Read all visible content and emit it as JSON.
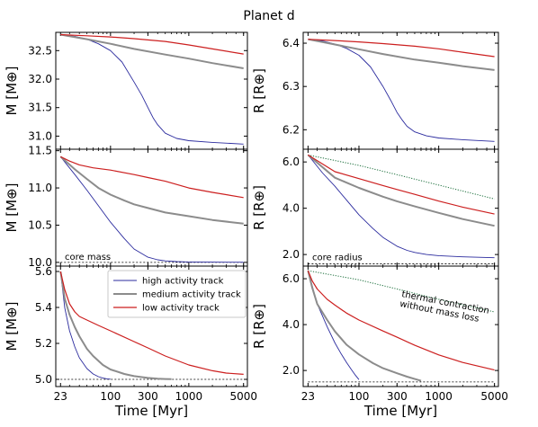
{
  "title": "Planet d",
  "chart_data": {
    "type": "line",
    "title": "Planet d",
    "xscale": "log",
    "xlabel": "Time [Myr]",
    "x_ticks": [
      23,
      100,
      300,
      1000,
      5000
    ],
    "xlim": [
      20,
      5600
    ],
    "legend": {
      "placement": "top-right of bottom-left panel",
      "entries": [
        {
          "name": "high activity track",
          "color": "#2b2b9e"
        },
        {
          "name": "medium activity track",
          "color": "#8c8c8c"
        },
        {
          "name": "low activity track",
          "color": "#cc1f1f"
        }
      ]
    },
    "panels": [
      {
        "id": "mass-top",
        "row": 0,
        "col": 0,
        "ylabel": "M [M⊕]",
        "ylim": [
          30.77,
          32.82
        ],
        "yticks": [
          31.0,
          31.5,
          32.0,
          32.5
        ],
        "ytick_labels": [
          "31.0",
          "31.5",
          "32.0",
          "32.5"
        ],
        "show_xticklabels": false,
        "series": [
          {
            "name": "high activity track",
            "x": [
              23,
              35,
              50,
              70,
              100,
              140,
              200,
              250,
              300,
              350,
              400,
              500,
              700,
              1000,
              2000,
              5000
            ],
            "y": [
              32.78,
              32.75,
              32.7,
              32.62,
              32.5,
              32.3,
              31.95,
              31.72,
              31.5,
              31.32,
              31.2,
              31.05,
              30.96,
              30.92,
              30.89,
              30.86
            ]
          },
          {
            "name": "medium activity track",
            "x": [
              23,
              50,
              100,
              200,
              500,
              1000,
              2000,
              5000
            ],
            "y": [
              32.78,
              32.7,
              32.62,
              32.53,
              32.43,
              32.36,
              32.28,
              32.19
            ]
          },
          {
            "name": "low activity track",
            "x": [
              23,
              50,
              100,
              200,
              500,
              1000,
              2000,
              5000
            ],
            "y": [
              32.78,
              32.76,
              32.74,
              32.71,
              32.66,
              32.6,
              32.53,
              32.44
            ]
          }
        ]
      },
      {
        "id": "radius-top",
        "row": 0,
        "col": 1,
        "ylabel": "R [R⊕]",
        "ylim": [
          6.155,
          6.425
        ],
        "yticks": [
          6.2,
          6.3,
          6.4
        ],
        "ytick_labels": [
          "6.2",
          "6.3",
          "6.4"
        ],
        "show_xticklabels": false,
        "series": [
          {
            "name": "high activity track",
            "x": [
              23,
              35,
              50,
              70,
              100,
              140,
              200,
              250,
              300,
              350,
              400,
              500,
              700,
              1000,
              2000,
              5000
            ],
            "y": [
              6.409,
              6.405,
              6.398,
              6.388,
              6.372,
              6.345,
              6.3,
              6.268,
              6.24,
              6.222,
              6.208,
              6.195,
              6.186,
              6.181,
              6.177,
              6.173
            ]
          },
          {
            "name": "medium activity track",
            "x": [
              23,
              50,
              100,
              200,
              500,
              1000,
              2000,
              5000
            ],
            "y": [
              6.409,
              6.397,
              6.386,
              6.375,
              6.362,
              6.355,
              6.347,
              6.338
            ]
          },
          {
            "name": "low activity track",
            "x": [
              23,
              50,
              100,
              200,
              500,
              1000,
              2000,
              5000
            ],
            "y": [
              6.409,
              6.406,
              6.403,
              6.399,
              6.393,
              6.387,
              6.379,
              6.369
            ]
          }
        ]
      },
      {
        "id": "mass-middle",
        "row": 1,
        "col": 0,
        "ylabel": "M [M⊕]",
        "ylim": [
          9.95,
          11.52
        ],
        "yticks": [
          10.0,
          10.5,
          11.0,
          11.5
        ],
        "ytick_labels": [
          "10.0",
          "10.5",
          "11.0",
          "11.5"
        ],
        "show_xticklabels": false,
        "series": [
          {
            "name": "high activity track",
            "x": [
              23,
              35,
              50,
              70,
              100,
              150,
              200,
              300,
              400,
              500,
              700,
              1000,
              2000,
              5000
            ],
            "y": [
              11.42,
              11.18,
              10.97,
              10.76,
              10.54,
              10.32,
              10.18,
              10.07,
              10.035,
              10.02,
              10.01,
              10.005,
              10.003,
              10.002
            ]
          },
          {
            "name": "medium activity track",
            "x": [
              23,
              35,
              50,
              70,
              100,
              150,
              200,
              300,
              500,
              1000,
              2000,
              5000
            ],
            "y": [
              11.42,
              11.25,
              11.12,
              11.0,
              10.91,
              10.83,
              10.78,
              10.73,
              10.67,
              10.62,
              10.57,
              10.52
            ]
          },
          {
            "name": "low activity track",
            "x": [
              23,
              30,
              40,
              60,
              100,
              200,
              300,
              500,
              1000,
              2000,
              5000
            ],
            "y": [
              11.42,
              11.36,
              11.31,
              11.27,
              11.24,
              11.18,
              11.14,
              11.09,
              11.0,
              10.94,
              10.87
            ]
          }
        ],
        "reference_lines": [
          {
            "label": "core mass",
            "y": 10.0
          }
        ]
      },
      {
        "id": "radius-middle",
        "row": 1,
        "col": 1,
        "ylabel": "R [R⊕]",
        "ylim": [
          1.5,
          6.55
        ],
        "yticks": [
          2.0,
          4.0,
          6.0
        ],
        "ytick_labels": [
          "2.0",
          "4.0",
          "6.0"
        ],
        "show_xticklabels": false,
        "series": [
          {
            "name": "high activity track",
            "x": [
              23,
              35,
              50,
              70,
              100,
              150,
              200,
              300,
              400,
              500,
              700,
              1000,
              2000,
              5000
            ],
            "y": [
              6.3,
              5.52,
              4.95,
              4.35,
              3.72,
              3.12,
              2.74,
              2.36,
              2.18,
              2.09,
              2.0,
              1.95,
              1.9,
              1.86
            ]
          },
          {
            "name": "medium activity track",
            "x": [
              23,
              50,
              100,
              200,
              300,
              500,
              1000,
              2000,
              5000
            ],
            "y": [
              6.3,
              5.32,
              4.88,
              4.5,
              4.3,
              4.08,
              3.8,
              3.53,
              3.24
            ]
          },
          {
            "name": "low activity track",
            "x": [
              23,
              50,
              100,
              200,
              300,
              500,
              1000,
              2000,
              5000
            ],
            "y": [
              6.3,
              5.58,
              5.28,
              4.98,
              4.81,
              4.6,
              4.31,
              4.05,
              3.75
            ]
          }
        ],
        "thermal_contraction": {
          "x": [
            23,
            100,
            300,
            1000,
            5000
          ],
          "y": [
            6.3,
            5.85,
            5.45,
            5.0,
            4.4
          ]
        },
        "reference_lines": [
          {
            "label": "core radius",
            "y": 1.6
          }
        ]
      },
      {
        "id": "mass-bottom",
        "row": 2,
        "col": 0,
        "ylabel": "M [M⊕]",
        "ylim": [
          4.96,
          5.63
        ],
        "yticks": [
          5.0,
          5.2,
          5.4,
          5.6
        ],
        "ytick_labels": [
          "5.0",
          "5.2",
          "5.4",
          "5.6"
        ],
        "show_xticklabels": true,
        "series": [
          {
            "name": "high activity track",
            "x": [
              23,
              26,
              30,
              35,
              40,
              50,
              60,
              70,
              80,
              90,
              100
            ],
            "y": [
              5.6,
              5.4,
              5.27,
              5.18,
              5.12,
              5.06,
              5.03,
              5.015,
              5.007,
              5.003,
              5.001
            ]
          },
          {
            "name": "medium activity track",
            "x": [
              23,
              26,
              30,
              35,
              40,
              50,
              60,
              80,
              100,
              150,
              200,
              300,
              400,
              500,
              600
            ],
            "y": [
              5.6,
              5.45,
              5.36,
              5.29,
              5.24,
              5.17,
              5.13,
              5.08,
              5.055,
              5.03,
              5.018,
              5.008,
              5.004,
              5.002,
              5.001
            ]
          },
          {
            "name": "low activity track",
            "x": [
              23,
              26,
              30,
              35,
              40,
              50,
              70,
              100,
              200,
              300,
              500,
              1000,
              2000,
              3000,
              5000
            ],
            "y": [
              5.6,
              5.5,
              5.42,
              5.375,
              5.35,
              5.33,
              5.3,
              5.27,
              5.21,
              5.175,
              5.13,
              5.08,
              5.048,
              5.035,
              5.028
            ]
          }
        ],
        "reference_lines": [
          {
            "y": 5.0
          }
        ]
      },
      {
        "id": "radius-bottom",
        "row": 2,
        "col": 1,
        "ylabel": "R [R⊕]",
        "ylim": [
          1.3,
          6.55
        ],
        "yticks": [
          2.0,
          4.0,
          6.0
        ],
        "ytick_labels": [
          "2.0",
          "4.0",
          "6.0"
        ],
        "show_xticklabels": true,
        "series": [
          {
            "name": "high activity track",
            "x": [
              23,
              30,
              40,
              50,
              60,
              70,
              80,
              90,
              100
            ],
            "y": [
              6.35,
              4.9,
              3.9,
              3.2,
              2.72,
              2.35,
              2.05,
              1.8,
              1.6
            ]
          },
          {
            "name": "medium activity track",
            "x": [
              23,
              26,
              30,
              40,
              50,
              70,
              100,
              150,
              200,
              300,
              400,
              500,
              600
            ],
            "y": [
              6.35,
              5.6,
              4.9,
              4.2,
              3.7,
              3.12,
              2.7,
              2.32,
              2.1,
              1.88,
              1.73,
              1.63,
              1.55
            ]
          },
          {
            "name": "low activity track",
            "x": [
              23,
              26,
              30,
              40,
              50,
              70,
              100,
              200,
              300,
              500,
              1000,
              2000,
              5000
            ],
            "y": [
              6.35,
              5.9,
              5.55,
              5.1,
              4.85,
              4.5,
              4.2,
              3.72,
              3.45,
              3.1,
              2.68,
              2.35,
              2.02
            ]
          }
        ],
        "thermal_contraction": {
          "x": [
            23,
            100,
            300,
            1000,
            5000
          ],
          "y": [
            6.35,
            5.95,
            5.55,
            5.1,
            4.55
          ]
        },
        "reference_lines": [
          {
            "y": 1.5
          }
        ]
      }
    ],
    "annotations": {
      "core_mass": "core mass",
      "core_radius": "core radius",
      "thermal_line1": "thermal contraction",
      "thermal_line2": "without mass loss"
    }
  }
}
